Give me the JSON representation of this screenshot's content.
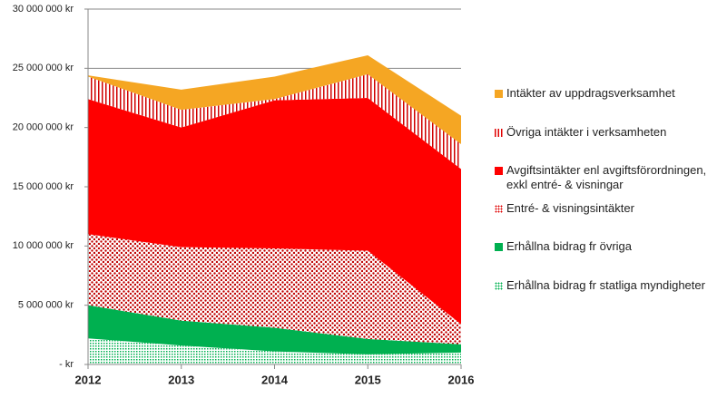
{
  "chart_data": {
    "type": "stacked-area",
    "categories": [
      "2012",
      "2013",
      "2014",
      "2015",
      "2016"
    ],
    "series": [
      {
        "name": "Erhållna bidrag fr statliga myndigheter",
        "color": "#00b050",
        "hatch": "fine-dots",
        "values": [
          2200000,
          1600000,
          1100000,
          850000,
          1000000
        ]
      },
      {
        "name": "Erhållna bidrag fr övriga",
        "color": "#00b050",
        "values": [
          2800000,
          2100000,
          2000000,
          1300000,
          700000
        ]
      },
      {
        "name": "Entré- & visningsintäkter",
        "color": "#e00000",
        "hatch": "dots",
        "values": [
          6000000,
          6200000,
          6700000,
          7450000,
          1700000
        ]
      },
      {
        "name": "Avgiftsintäkter enl avgiftsförordningen, exkl entré- & visningar",
        "color": "#ff0000",
        "values": [
          11400000,
          10100000,
          12500000,
          12900000,
          13100000
        ]
      },
      {
        "name": "Övriga intäkter i verksamheten",
        "color": "#e00000",
        "hatch": "vertical-lines",
        "values": [
          1900000,
          1500000,
          100000,
          2000000,
          2100000
        ]
      },
      {
        "name": "Intäkter av uppdragsverksamhet",
        "color": "#f5a623",
        "values": [
          100000,
          1700000,
          1900000,
          1600000,
          2400000
        ]
      }
    ],
    "ylim": [
      0,
      30000000
    ],
    "yticks": [
      {
        "value": 0,
        "label": "- kr"
      },
      {
        "value": 5000000,
        "label": "5 000 000 kr"
      },
      {
        "value": 10000000,
        "label": "10 000 000 kr"
      },
      {
        "value": 15000000,
        "label": "15 000 000 kr"
      },
      {
        "value": 20000000,
        "label": "20 000 000 kr"
      },
      {
        "value": 25000000,
        "label": "25 000 000 kr"
      },
      {
        "value": 30000000,
        "label": "30 000 000 kr"
      }
    ],
    "grid": true,
    "legend": "right",
    "legend_order": "reversed"
  }
}
